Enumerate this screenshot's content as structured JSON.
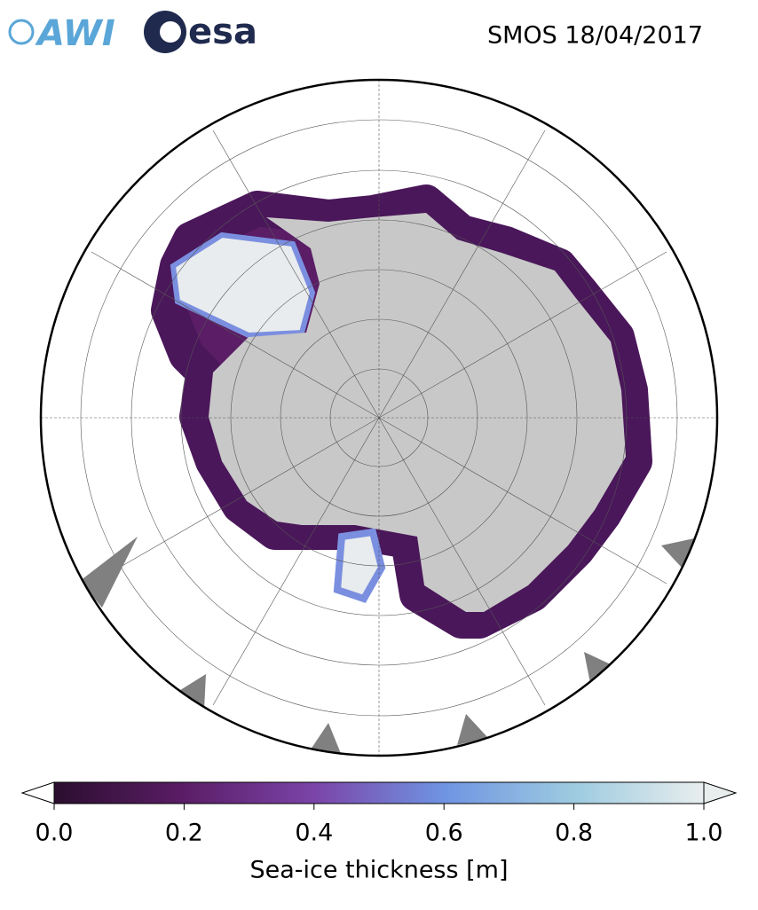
{
  "header": {
    "logo_awi": "AWI",
    "logo_esa": "esa",
    "title": "SMOS 18/04/2017"
  },
  "colorbar": {
    "label": "Sea-ice thickness [m]",
    "lim": [
      0,
      1
    ],
    "ticks": [
      {
        "value": 0,
        "label": "0.0"
      },
      {
        "value": 0.2,
        "label": "0.2"
      },
      {
        "value": 0.4,
        "label": "0.4"
      },
      {
        "value": 0.6,
        "label": "0.6"
      },
      {
        "value": 0.8,
        "label": "0.8"
      },
      {
        "value": 1,
        "label": "1.0"
      }
    ],
    "colormap": [
      "#2b0e2f",
      "#5a1d66",
      "#7b44a8",
      "#6f94e2",
      "#9dcbe0",
      "#e8eeee"
    ]
  }
}
